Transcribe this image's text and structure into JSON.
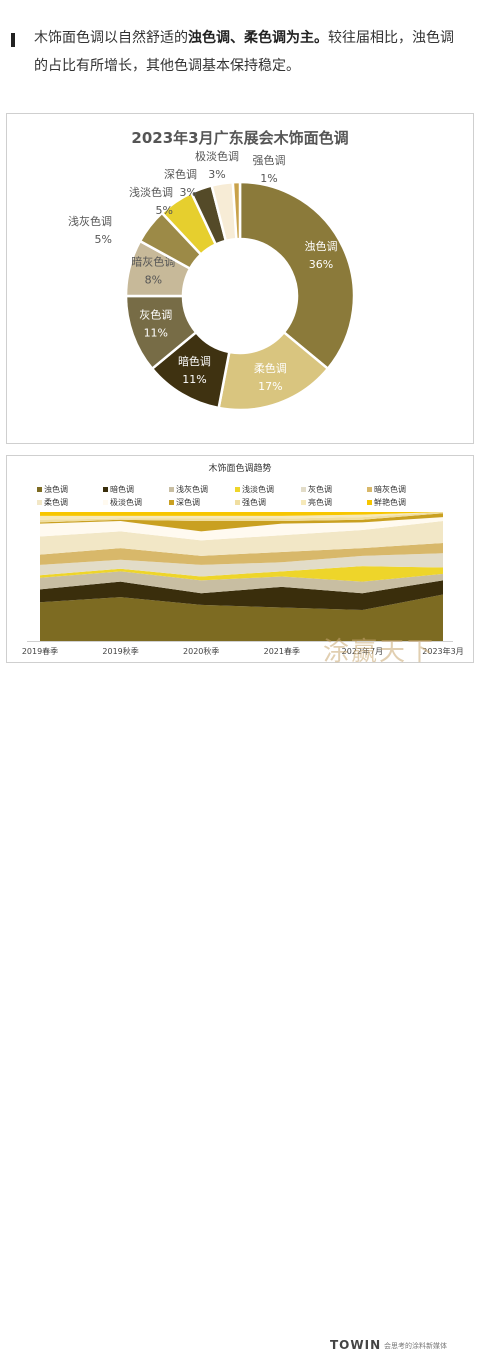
{
  "intro": {
    "part1": "木饰面色调以自然舒适的",
    "bold": "浊色调、柔色调为主。",
    "part2": "较往届相比，浊色调的占比有所增长，其他色调基本保持稳定。"
  },
  "chart_data": [
    {
      "type": "pie",
      "title": "2023年3月广东展会木饰面色调",
      "slices": [
        {
          "label": "浊色调",
          "value": 36,
          "color": "#8b7a3a"
        },
        {
          "label": "柔色调",
          "value": 17,
          "color": "#d9c57f"
        },
        {
          "label": "暗色调",
          "value": 11,
          "color": "#3f3211"
        },
        {
          "label": "灰色调",
          "value": 11,
          "color": "#776c46"
        },
        {
          "label": "暗灰色调",
          "value": 8,
          "color": "#c7b999"
        },
        {
          "label": "浅灰色调",
          "value": 5,
          "color": "#9c8a47"
        },
        {
          "label": "浅淡色调",
          "value": 5,
          "color": "#e6cf2e"
        },
        {
          "label": "深色调",
          "value": 3,
          "color": "#544a28"
        },
        {
          "label": "极淡色调",
          "value": 3,
          "color": "#f7ecd6"
        },
        {
          "label": "强色调",
          "value": 1,
          "color": "#c9a24a"
        }
      ]
    },
    {
      "type": "area",
      "title": "木饰面色调趋势",
      "categories": [
        "2019春季",
        "2019秋季",
        "2020秋季",
        "2021春季",
        "2022年7月",
        "2023年3月"
      ],
      "series": [
        {
          "name": "浊色调",
          "color": "#7d6b22",
          "values": [
            30,
            34,
            28,
            26,
            24,
            36
          ]
        },
        {
          "name": "暗色调",
          "color": "#3a2e0c",
          "values": [
            10,
            12,
            9,
            16,
            13,
            11
          ]
        },
        {
          "name": "浅灰色调",
          "color": "#c8bea2",
          "values": [
            9,
            8,
            10,
            8,
            9,
            5
          ]
        },
        {
          "name": "浅淡色调",
          "color": "#eed52a",
          "values": [
            2,
            2,
            3,
            4,
            12,
            5
          ]
        },
        {
          "name": "灰色调",
          "color": "#e2dcc8",
          "values": [
            8,
            7,
            9,
            7,
            8,
            11
          ]
        },
        {
          "name": "暗灰色调",
          "color": "#d8b86a",
          "values": [
            8,
            9,
            7,
            8,
            6,
            8
          ]
        },
        {
          "name": "柔色调",
          "color": "#f2e7c6",
          "values": [
            14,
            13,
            12,
            13,
            14,
            17
          ]
        },
        {
          "name": "极淡色调",
          "color": "#fffaf0",
          "values": [
            10,
            8,
            7,
            9,
            6,
            3
          ]
        },
        {
          "name": "深色调",
          "color": "#c9a021",
          "values": [
            1,
            1,
            8,
            2,
            2,
            3
          ]
        },
        {
          "name": "强色调",
          "color": "#f0dea0",
          "values": [
            2,
            1,
            2,
            2,
            2,
            1
          ]
        },
        {
          "name": "亮色调",
          "color": "#f6e9b9",
          "values": [
            3,
            2,
            2,
            2,
            2,
            0
          ]
        },
        {
          "name": "鲜艳色调",
          "color": "#f7c600",
          "values": [
            3,
            3,
            3,
            3,
            2,
            0
          ]
        }
      ]
    }
  ],
  "footer": {
    "watermark": "涂赢天下",
    "brand": "TOWIN",
    "slogan": "会思考的涂料新媒体"
  }
}
